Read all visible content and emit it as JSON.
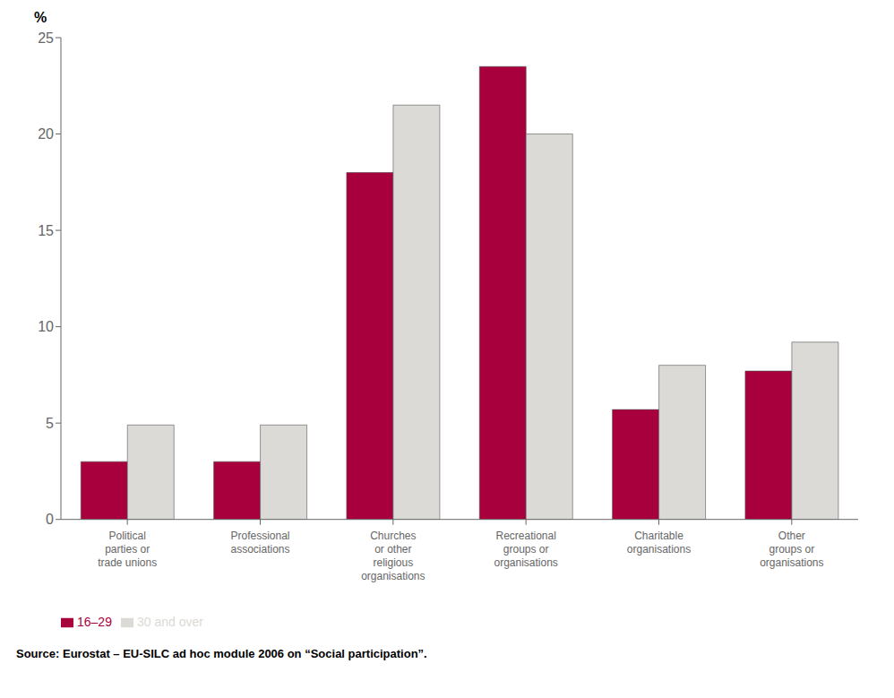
{
  "chart_data": {
    "type": "bar",
    "ylabel": "%",
    "categories": [
      "Political\nparties or\ntrade unions",
      "Professional\nassociations",
      "Churches\nor other\nreligious\norganisations",
      "Recreational\ngroups or\norganisations",
      "Charitable\norganisations",
      "Other\ngroups or\norganisations"
    ],
    "series": [
      {
        "name": "16–29",
        "color": "#A8003C",
        "values": [
          3.0,
          3.0,
          18.0,
          23.5,
          5.7,
          7.7
        ]
      },
      {
        "name": "30 and over",
        "color": "#DCDAD6",
        "values": [
          4.9,
          4.9,
          21.5,
          20.0,
          8.0,
          9.2
        ]
      }
    ],
    "ylim": [
      0,
      25
    ],
    "yticks": [
      0,
      5,
      10,
      15,
      20,
      25
    ],
    "grid": false,
    "legend": "bottom",
    "annotations": [
      "Source: Eurostat – EU-SILC ad hoc module 2006 on “Social participation”."
    ]
  }
}
